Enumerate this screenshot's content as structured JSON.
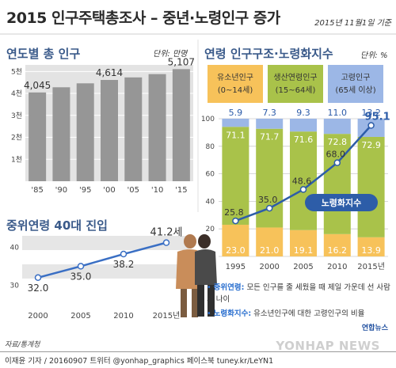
{
  "header": {
    "title": "2015 인구주택총조사 – 중년·노령인구 증가",
    "date": "2015년 11월1일 기준"
  },
  "panel1": {
    "title": "연도별 총 인구",
    "unit": "단위: 만명"
  },
  "panel2": {
    "title": "연령 인구구조·노령화지수",
    "unit": "단위: %",
    "legend": [
      {
        "line1": "유소년인구",
        "line2": "(0~14세)",
        "color": "#f7c25a"
      },
      {
        "line1": "생산연령인구",
        "line2": "(15~64세)",
        "color": "#a9c24a"
      },
      {
        "line1": "고령인구",
        "line2": "(65세 이상)",
        "color": "#9cb7e6"
      }
    ],
    "index_label": "노령화지수"
  },
  "panel3": {
    "title": "중위연령 40대 진입"
  },
  "definitions": {
    "median_label": "중위연령:",
    "median_text": "모든 인구를 줄 세웠을 때 제일 가운데 선 사람의 나이",
    "aging_label": "노령화지수:",
    "aging_text": "유소년인구에 대한 고령인구의 비율"
  },
  "source": "자료/통계청",
  "credit": "이재윤 기자 / 20160907  트위터 @yonhap_graphics  페이스북 tuney.kr/LeYN1",
  "logo": "연합뉴스",
  "watermark": "YONHAP NEWS",
  "chart_data": [
    {
      "type": "bar",
      "title": "연도별 총 인구",
      "unit": "만명",
      "categories": [
        "'85",
        "'90",
        "'95",
        "'00",
        "'05",
        "'10",
        "'15"
      ],
      "values": [
        4045,
        4280,
        4460,
        4614,
        4730,
        4880,
        5107
      ],
      "labeled_values": {
        "'85": "4,045",
        "'00": "4,614",
        "'15": "5,107"
      },
      "ytick_labels": [
        "5천",
        "4천",
        "3천",
        "2천",
        "1천"
      ],
      "ylim": [
        0,
        5300
      ],
      "colors": {
        "bar": "#969696",
        "plot_bg": "#e3e3e3"
      }
    },
    {
      "type": "bar",
      "stacked": true,
      "title": "연령 인구구조·노령화지수",
      "unit": "%",
      "categories": [
        "1995",
        "2000",
        "2005",
        "2010",
        "2015년"
      ],
      "series": [
        {
          "name": "유소년인구",
          "values": [
            23.0,
            21.0,
            19.1,
            16.2,
            13.9
          ]
        },
        {
          "name": "생산연령인구",
          "values": [
            71.1,
            71.7,
            71.6,
            72.8,
            72.9
          ]
        },
        {
          "name": "고령인구",
          "values": [
            5.9,
            7.3,
            9.3,
            11.0,
            13.2
          ]
        },
        {
          "name": "노령화지수",
          "type": "line",
          "values": [
            25.8,
            35.0,
            48.6,
            68.0,
            95.1
          ]
        }
      ],
      "yticks": [
        0,
        20,
        40,
        60,
        80,
        100
      ],
      "ylim": [
        0,
        100
      ]
    },
    {
      "type": "line",
      "title": "중위연령 40대 진입",
      "categories": [
        "2000",
        "2005",
        "2010",
        "2015년"
      ],
      "values": [
        32.0,
        35.0,
        38.2,
        41.2
      ],
      "value_labels": [
        "32.0",
        "35.0",
        "38.2",
        "41.2세"
      ],
      "yticks": [
        30,
        40
      ],
      "ylim": [
        28,
        43
      ]
    }
  ]
}
